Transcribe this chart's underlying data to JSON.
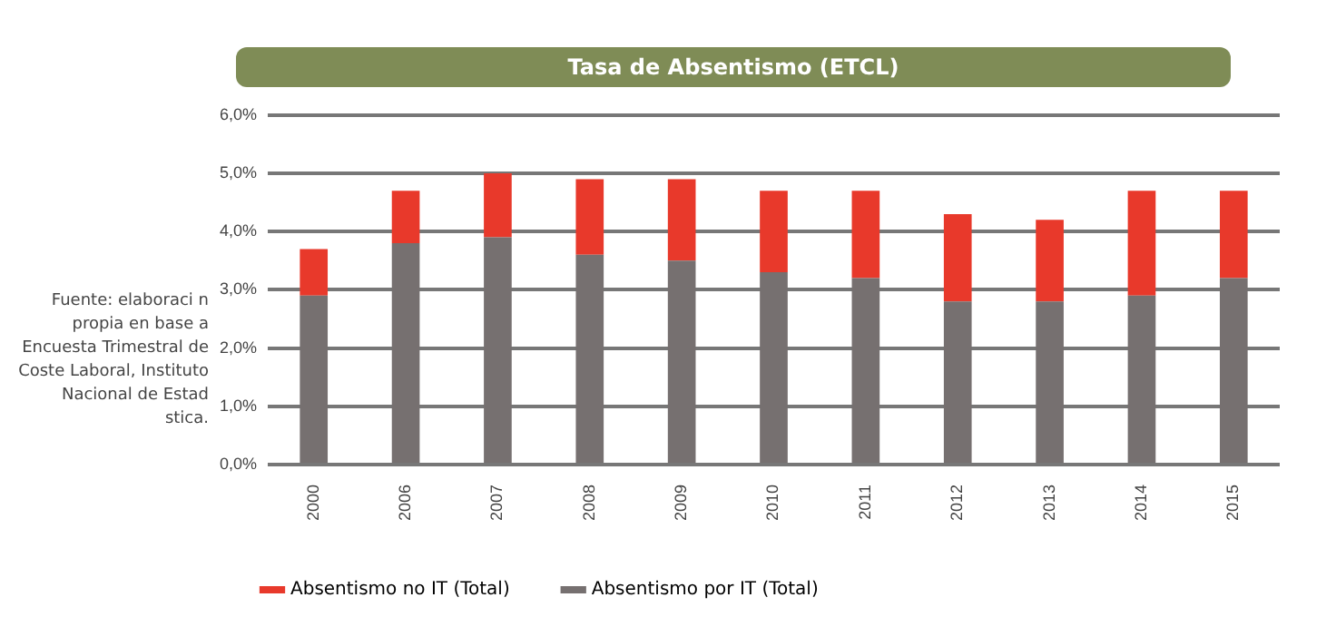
{
  "chart_data": {
    "type": "bar",
    "title": "Tasa de Absentismo (ETCL)",
    "stacked": true,
    "grid": "y",
    "legend": "bottom",
    "categories": [
      "2000",
      "2006",
      "2007",
      "2008",
      "2009",
      "2010",
      "2011",
      "2012",
      "2013",
      "2014",
      "2015"
    ],
    "series": [
      {
        "name": "Absentismo por IT (Total)",
        "color": "#767070",
        "values": [
          2.9,
          3.8,
          3.9,
          3.6,
          3.5,
          3.3,
          3.2,
          2.8,
          2.8,
          2.9,
          3.2
        ]
      },
      {
        "name": "Absentismo no IT (Total)",
        "color": "#e8392b",
        "values": [
          0.8,
          0.9,
          1.1,
          1.3,
          1.4,
          1.4,
          1.5,
          1.5,
          1.4,
          1.8,
          1.5
        ]
      }
    ],
    "ylim": [
      0,
      6
    ],
    "yticks": [
      {
        "value": 0,
        "label": "0,0%"
      },
      {
        "value": 1,
        "label": "1,0%"
      },
      {
        "value": 2,
        "label": "2,0%"
      },
      {
        "value": 3,
        "label": "3,0%"
      },
      {
        "value": 4,
        "label": "4,0%"
      },
      {
        "value": 5,
        "label": "5,0%"
      },
      {
        "value": 6,
        "label": "6,0%"
      }
    ],
    "annotations": [
      "Fuente: elaboraci n propia en base a Encuesta Trimestral de Coste Laboral, Instituto Nacional de Estad stica."
    ]
  }
}
